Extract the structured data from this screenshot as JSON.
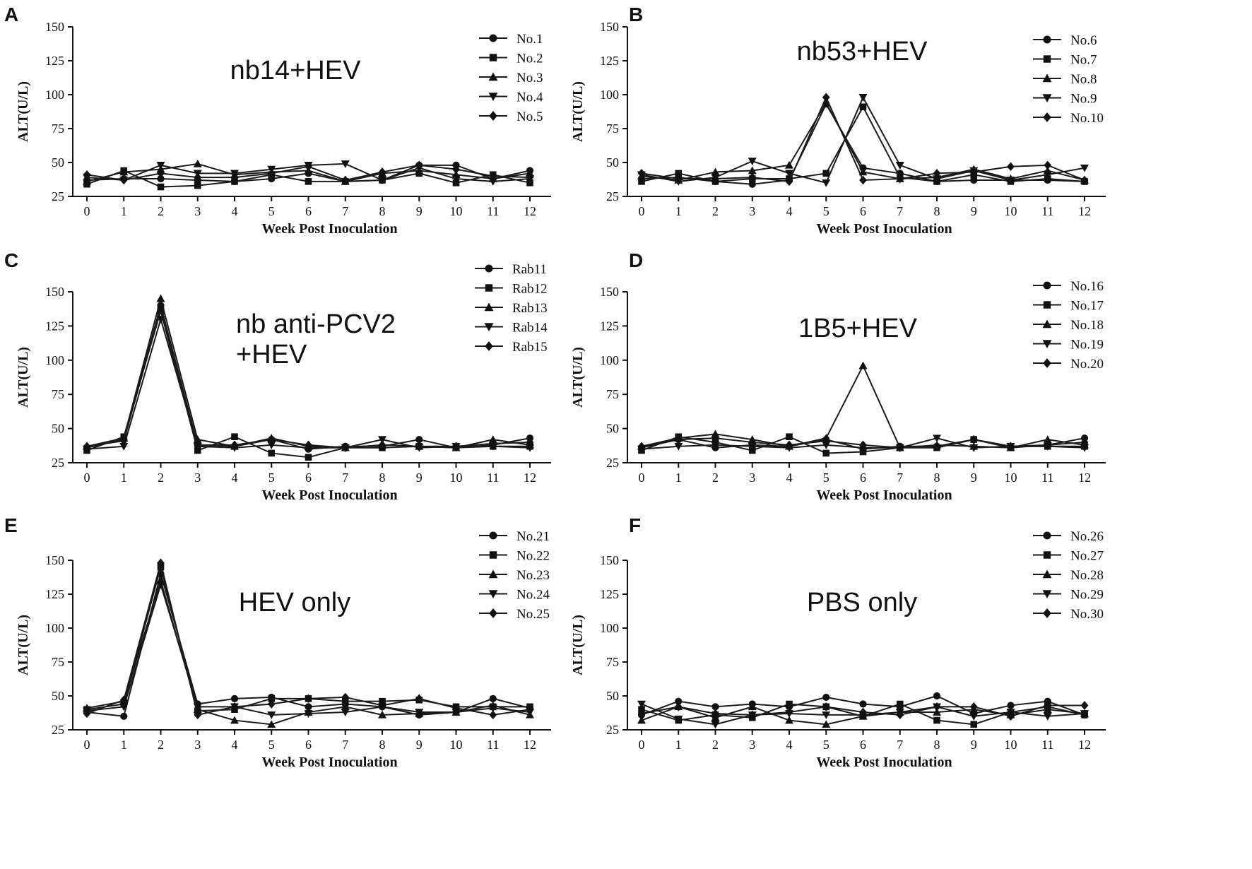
{
  "chart_data": [
    {
      "type": "line",
      "panel": "A",
      "annotation": [
        "nb14+HEV"
      ],
      "xlabel": "Week Post Inoculation",
      "ylabel": "ALT(U/L)",
      "xlim": [
        0,
        12
      ],
      "ylim": [
        25,
        150
      ],
      "xticks": [
        0,
        1,
        2,
        3,
        4,
        5,
        6,
        7,
        8,
        9,
        10,
        11,
        12
      ],
      "yticks": [
        25,
        50,
        75,
        100,
        125,
        150
      ],
      "series": [
        {
          "name": "No.1",
          "marker": "circle",
          "values": [
            37,
            38,
            38,
            37,
            36,
            38,
            42,
            36,
            37,
            48,
            48,
            38,
            44
          ]
        },
        {
          "name": "No.2",
          "marker": "square",
          "values": [
            34,
            44,
            32,
            33,
            36,
            41,
            36,
            36,
            37,
            42,
            35,
            41,
            35
          ]
        },
        {
          "name": "No.3",
          "marker": "triangle-up",
          "values": [
            36,
            43,
            45,
            49,
            41,
            43,
            44,
            36,
            42,
            44,
            41,
            38,
            42
          ]
        },
        {
          "name": "No.4",
          "marker": "triangle-down",
          "values": [
            39,
            37,
            48,
            42,
            42,
            45,
            48,
            49,
            37,
            46,
            38,
            36,
            38
          ]
        },
        {
          "name": "No.5",
          "marker": "diamond",
          "values": [
            41,
            37,
            42,
            39,
            39,
            42,
            47,
            37,
            43,
            48,
            45,
            40,
            39
          ]
        }
      ]
    },
    {
      "type": "line",
      "panel": "B",
      "annotation": [
        "nb53+HEV"
      ],
      "xlabel": "Week Post Inoculation",
      "ylabel": "ALT(U/L)",
      "xlim": [
        0,
        12
      ],
      "ylim": [
        25,
        150
      ],
      "xticks": [
        0,
        1,
        2,
        3,
        4,
        5,
        6,
        7,
        8,
        9,
        10,
        11,
        12
      ],
      "yticks": [
        25,
        50,
        75,
        100,
        125,
        150
      ],
      "series": [
        {
          "name": "No.6",
          "marker": "circle",
          "values": [
            38,
            39,
            36,
            34,
            37,
            93,
            46,
            42,
            36,
            37,
            37,
            37,
            36
          ]
        },
        {
          "name": "No.7",
          "marker": "square",
          "values": [
            36,
            42,
            36,
            38,
            38,
            42,
            91,
            39,
            36,
            41,
            36,
            38,
            36
          ]
        },
        {
          "name": "No.8",
          "marker": "triangle-up",
          "values": [
            40,
            37,
            43,
            44,
            48,
            94,
            43,
            38,
            39,
            45,
            38,
            44,
            37
          ]
        },
        {
          "name": "No.9",
          "marker": "triangle-down",
          "values": [
            41,
            36,
            39,
            51,
            42,
            35,
            98,
            48,
            38,
            44,
            37,
            41,
            46
          ]
        },
        {
          "name": "No.10",
          "marker": "diamond",
          "values": [
            42,
            38,
            38,
            39,
            36,
            98,
            37,
            38,
            42,
            43,
            47,
            48,
            37
          ]
        }
      ]
    },
    {
      "type": "line",
      "panel": "C",
      "annotation": [
        "nb anti-PCV2",
        "+HEV"
      ],
      "xlabel": "Week Post Inoculation",
      "ylabel": "ALT(U/L)",
      "xlim": [
        0,
        12
      ],
      "ylim": [
        25,
        150
      ],
      "xticks": [
        0,
        1,
        2,
        3,
        4,
        5,
        6,
        7,
        8,
        9,
        10,
        11,
        12
      ],
      "yticks": [
        25,
        50,
        75,
        100,
        125,
        150
      ],
      "series": [
        {
          "name": "Rab11",
          "marker": "circle",
          "values": [
            36,
            42,
            140,
            38,
            37,
            42,
            35,
            37,
            37,
            42,
            36,
            38,
            43
          ]
        },
        {
          "name": "Rab12",
          "marker": "square",
          "values": [
            34,
            44,
            136,
            34,
            44,
            32,
            29,
            36,
            36,
            37,
            36,
            37,
            37
          ]
        },
        {
          "name": "Rab13",
          "marker": "triangle-up",
          "values": [
            37,
            43,
            145,
            42,
            37,
            43,
            37,
            36,
            38,
            37,
            36,
            42,
            38
          ]
        },
        {
          "name": "Rab14",
          "marker": "triangle-down",
          "values": [
            35,
            37,
            130,
            37,
            36,
            38,
            36,
            36,
            42,
            36,
            37,
            37,
            36
          ]
        },
        {
          "name": "Rab15",
          "marker": "diamond",
          "values": [
            37,
            41,
            138,
            38,
            38,
            42,
            38,
            36,
            38,
            37,
            37,
            39,
            40
          ]
        }
      ]
    },
    {
      "type": "line",
      "panel": "D",
      "annotation": [
        "1B5+HEV"
      ],
      "xlabel": "Week Post Inoculation",
      "ylabel": "ALT(U/L)",
      "xlim": [
        0,
        12
      ],
      "ylim": [
        25,
        150
      ],
      "xticks": [
        0,
        1,
        2,
        3,
        4,
        5,
        6,
        7,
        8,
        9,
        10,
        11,
        12
      ],
      "yticks": [
        25,
        50,
        75,
        100,
        125,
        150
      ],
      "series": [
        {
          "name": "No.16",
          "marker": "circle",
          "values": [
            36,
            42,
            36,
            38,
            37,
            42,
            35,
            37,
            37,
            42,
            36,
            38,
            43
          ]
        },
        {
          "name": "No.17",
          "marker": "square",
          "values": [
            34,
            44,
            40,
            34,
            44,
            32,
            33,
            36,
            36,
            42,
            37,
            37,
            37
          ]
        },
        {
          "name": "No.18",
          "marker": "triangle-up",
          "values": [
            37,
            43,
            46,
            42,
            37,
            43,
            96,
            36,
            38,
            37,
            36,
            42,
            38
          ]
        },
        {
          "name": "No.19",
          "marker": "triangle-down",
          "values": [
            35,
            37,
            38,
            37,
            36,
            38,
            36,
            36,
            43,
            36,
            37,
            37,
            36
          ]
        },
        {
          "name": "No.20",
          "marker": "diamond",
          "values": [
            37,
            42,
            43,
            40,
            38,
            41,
            38,
            36,
            37,
            42,
            37,
            38,
            40
          ]
        }
      ]
    },
    {
      "type": "line",
      "panel": "E",
      "annotation": [
        "HEV only"
      ],
      "xlabel": "Week Post Inoculation",
      "ylabel": "ALT(U/L)",
      "xlim": [
        0,
        12
      ],
      "ylim": [
        25,
        150
      ],
      "xticks": [
        0,
        1,
        2,
        3,
        4,
        5,
        6,
        7,
        8,
        9,
        10,
        11,
        12
      ],
      "yticks": [
        25,
        50,
        75,
        100,
        125,
        150
      ],
      "series": [
        {
          "name": "No.21",
          "marker": "circle",
          "values": [
            38,
            35,
            140,
            44,
            48,
            49,
            42,
            44,
            42,
            36,
            38,
            48,
            41
          ]
        },
        {
          "name": "No.22",
          "marker": "square",
          "values": [
            40,
            44,
            145,
            39,
            40,
            48,
            48,
            46,
            46,
            47,
            42,
            42,
            42
          ]
        },
        {
          "name": "No.23",
          "marker": "triangle-up",
          "values": [
            41,
            46,
            135,
            40,
            32,
            29,
            38,
            42,
            36,
            37,
            38,
            43,
            36
          ]
        },
        {
          "name": "No.24",
          "marker": "triangle-down",
          "values": [
            39,
            42,
            132,
            42,
            42,
            36,
            37,
            38,
            42,
            38,
            38,
            41,
            38
          ]
        },
        {
          "name": "No.25",
          "marker": "diamond",
          "values": [
            37,
            47,
            148,
            36,
            42,
            44,
            48,
            49,
            43,
            48,
            41,
            36,
            40
          ]
        }
      ]
    },
    {
      "type": "line",
      "panel": "F",
      "annotation": [
        "PBS only"
      ],
      "xlabel": "Week Post Inoculation",
      "ylabel": "ALT(U/L)",
      "xlim": [
        0,
        12
      ],
      "ylim": [
        25,
        150
      ],
      "xticks": [
        0,
        1,
        2,
        3,
        4,
        5,
        6,
        7,
        8,
        9,
        10,
        11,
        12
      ],
      "yticks": [
        25,
        50,
        75,
        100,
        125,
        150
      ],
      "series": [
        {
          "name": "No.26",
          "marker": "circle",
          "values": [
            36,
            46,
            42,
            44,
            42,
            49,
            44,
            42,
            50,
            37,
            43,
            46,
            36
          ]
        },
        {
          "name": "No.27",
          "marker": "square",
          "values": [
            40,
            32,
            36,
            34,
            44,
            42,
            35,
            44,
            32,
            29,
            38,
            42,
            36
          ]
        },
        {
          "name": "No.28",
          "marker": "triangle-up",
          "values": [
            32,
            42,
            34,
            42,
            32,
            29,
            35,
            38,
            38,
            40,
            36,
            40,
            37
          ]
        },
        {
          "name": "No.29",
          "marker": "triangle-down",
          "values": [
            44,
            33,
            29,
            36,
            37,
            36,
            36,
            38,
            42,
            35,
            38,
            35,
            37
          ]
        },
        {
          "name": "No.30",
          "marker": "diamond",
          "values": [
            37,
            42,
            37,
            36,
            38,
            42,
            38,
            36,
            42,
            42,
            35,
            43,
            43
          ]
        }
      ]
    }
  ]
}
